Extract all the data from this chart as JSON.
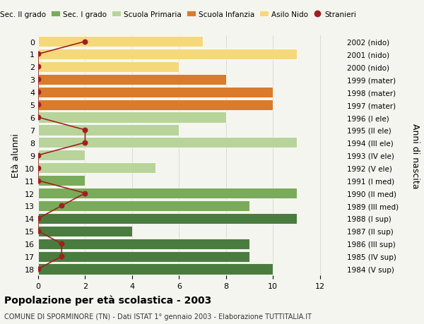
{
  "ages": [
    18,
    17,
    16,
    15,
    14,
    13,
    12,
    11,
    10,
    9,
    8,
    7,
    6,
    5,
    4,
    3,
    2,
    1,
    0
  ],
  "anni": [
    "1984 (V sup)",
    "1985 (IV sup)",
    "1986 (III sup)",
    "1987 (II sup)",
    "1988 (I sup)",
    "1989 (III med)",
    "1990 (II med)",
    "1991 (I med)",
    "1992 (V ele)",
    "1993 (IV ele)",
    "1994 (III ele)",
    "1995 (II ele)",
    "1996 (I ele)",
    "1997 (mater)",
    "1998 (mater)",
    "1999 (mater)",
    "2000 (nido)",
    "2001 (nido)",
    "2002 (nido)"
  ],
  "bar_values": [
    10,
    9,
    9,
    4,
    11,
    9,
    11,
    2,
    5,
    2,
    11,
    6,
    8,
    10,
    10,
    8,
    6,
    11,
    7
  ],
  "bar_colors": [
    "#4a7c3f",
    "#4a7c3f",
    "#4a7c3f",
    "#4a7c3f",
    "#4a7c3f",
    "#7aab5a",
    "#7aab5a",
    "#7aab5a",
    "#b8d49a",
    "#b8d49a",
    "#b8d49a",
    "#b8d49a",
    "#b8d49a",
    "#d97b2a",
    "#d97b2a",
    "#d97b2a",
    "#f5d87a",
    "#f5d87a",
    "#f5d87a"
  ],
  "stranieri_values": [
    0,
    1,
    1,
    0,
    0,
    1,
    2,
    0,
    0,
    0,
    2,
    2,
    0,
    0,
    0,
    0,
    0,
    0,
    2
  ],
  "legend_labels": [
    "Sec. II grado",
    "Sec. I grado",
    "Scuola Primaria",
    "Scuola Infanzia",
    "Asilo Nido",
    "Stranieri"
  ],
  "legend_colors": [
    "#4a7c3f",
    "#7aab5a",
    "#b8d49a",
    "#d97b2a",
    "#f5d87a",
    "#a02020"
  ],
  "title": "Popolazione per età scolastica - 2003",
  "subtitle": "COMUNE DI SPORMINORE (TN) - Dati ISTAT 1° gennaio 2003 - Elaborazione TUTTITALIA.IT",
  "ylabel_left": "Età alunni",
  "ylabel_right": "Anni di nascita",
  "xlim": [
    0,
    13
  ],
  "background_color": "#f5f5f0",
  "grid_color": "#cccccc"
}
